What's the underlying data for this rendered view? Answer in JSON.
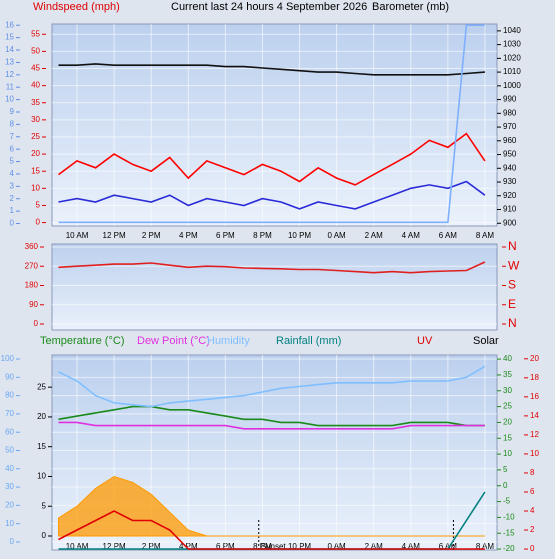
{
  "header": {
    "title": "Current last 24 hours 4 September 2026",
    "left_label": "Windspeed (mph)",
    "right_label": "Barometer (mb)"
  },
  "chart_data": [
    {
      "type": "line",
      "x": [
        9,
        10,
        11,
        12,
        13,
        14,
        15,
        16,
        17,
        18,
        19,
        20,
        21,
        22,
        23,
        24,
        25,
        26,
        27,
        28,
        29,
        30,
        31,
        32
      ],
      "xlim": [
        8.65,
        32.65
      ],
      "xticks": [
        {
          "value": 10,
          "label": "10 AM"
        },
        {
          "value": 12,
          "label": "12 PM"
        },
        {
          "value": 14,
          "label": "2 PM"
        },
        {
          "value": 16,
          "label": "4 PM"
        },
        {
          "value": 18,
          "label": "6 PM"
        },
        {
          "value": 20,
          "label": "8 PM"
        },
        {
          "value": 22,
          "label": "10 PM"
        },
        {
          "value": 24,
          "label": "0 AM"
        },
        {
          "value": 26,
          "label": "2 AM"
        },
        {
          "value": 28,
          "label": "4 AM"
        },
        {
          "value": 30,
          "label": "6 AM"
        },
        {
          "value": 32,
          "label": "8 AM"
        }
      ],
      "ylim": [
        -1,
        58
      ],
      "yticks": [
        0,
        5,
        10,
        15,
        20,
        25,
        30,
        35,
        40,
        45,
        50,
        55
      ],
      "y2lim": [
        898,
        1045
      ],
      "y2ticks": [
        900,
        910,
        920,
        930,
        940,
        950,
        960,
        970,
        980,
        990,
        1000,
        1010,
        1020,
        1030,
        1040
      ],
      "y3lim": [
        -0.2,
        16.1
      ],
      "y3ticks": [
        0,
        1,
        2,
        3,
        4,
        5,
        6,
        7,
        8,
        9,
        10,
        11,
        12,
        13,
        14,
        15,
        16
      ],
      "axis_colors": {
        "y": "#e00000",
        "y2": "#000000",
        "y3": "#5f8fe8"
      },
      "grid": true,
      "series": [
        {
          "color": "#ff0000",
          "values": [
            14,
            18,
            16,
            20,
            17,
            15,
            19,
            13,
            18,
            16,
            14,
            17,
            15,
            12,
            16,
            13,
            11,
            14,
            17,
            20,
            24,
            22,
            26,
            18
          ]
        },
        {
          "color": "#2a2ad8",
          "values": [
            6,
            7,
            6,
            8,
            7,
            6,
            8,
            5,
            7,
            6,
            5,
            7,
            6,
            4,
            6,
            5,
            4,
            6,
            8,
            10,
            11,
            10,
            12,
            8
          ]
        },
        {
          "color": "#111111",
          "axis": "y2",
          "values": [
            1015,
            1015,
            1016,
            1015,
            1015,
            1015,
            1015,
            1015,
            1015,
            1014,
            1014,
            1013,
            1012,
            1011,
            1010,
            1010,
            1009,
            1008,
            1008,
            1008,
            1008,
            1008,
            1009,
            1010
          ]
        },
        {
          "color": "#7fb0ff",
          "axis": "y3",
          "values": [
            0.1,
            0.1,
            0.1,
            0.1,
            0.1,
            0.1,
            0.1,
            0.1,
            0.1,
            0.1,
            0.1,
            0.1,
            0.1,
            0.1,
            0.1,
            0.1,
            0.1,
            0.1,
            0.1,
            0.1,
            0.1,
            0.1,
            16,
            16
          ]
        }
      ]
    },
    {
      "type": "line",
      "x": [
        9,
        10,
        11,
        12,
        13,
        14,
        15,
        16,
        17,
        18,
        19,
        20,
        21,
        22,
        23,
        24,
        25,
        26,
        27,
        28,
        29,
        30,
        31,
        32
      ],
      "xlim": [
        8.65,
        32.65
      ],
      "ylim": [
        -28,
        374
      ],
      "yticks": [
        0,
        90,
        180,
        270,
        360
      ],
      "y2lim": [
        -28,
        374
      ],
      "y2ticks": [
        {
          "value": 360,
          "label": "N"
        },
        {
          "value": 270,
          "label": "W"
        },
        {
          "value": 180,
          "label": "S"
        },
        {
          "value": 90,
          "label": "E"
        },
        {
          "value": 0,
          "label": "N"
        }
      ],
      "axis_colors": {
        "y": "#e00000",
        "y2": "#e00000"
      },
      "grid": true,
      "series": [
        {
          "color": "#e02020",
          "values": [
            265,
            270,
            275,
            280,
            280,
            285,
            275,
            265,
            270,
            268,
            262,
            260,
            258,
            255,
            255,
            250,
            245,
            240,
            245,
            240,
            245,
            248,
            250,
            290
          ]
        }
      ]
    },
    {
      "type": "line",
      "x": [
        9,
        10,
        11,
        12,
        13,
        14,
        15,
        16,
        17,
        18,
        19,
        20,
        21,
        22,
        23,
        24,
        25,
        26,
        27,
        28,
        29,
        30,
        31,
        32
      ],
      "xlim": [
        8.65,
        32.65
      ],
      "xticks": [
        {
          "value": 10,
          "label": "10 AM"
        },
        {
          "value": 12,
          "label": "12 PM"
        },
        {
          "value": 14,
          "label": "2 PM"
        },
        {
          "value": 16,
          "label": "4 PM"
        },
        {
          "value": 18,
          "label": "6 PM"
        },
        {
          "value": 20,
          "label": "8 PM"
        },
        {
          "value": 22,
          "label": "10 PM"
        },
        {
          "value": 24,
          "label": "0 AM"
        },
        {
          "value": 26,
          "label": "2 AM"
        },
        {
          "value": 28,
          "label": "4 AM"
        },
        {
          "value": 30,
          "label": "6 AM"
        },
        {
          "value": 32,
          "label": "8 AM"
        }
      ],
      "ylim": [
        -4.4,
        102.2
      ],
      "yticks": [
        0,
        10,
        20,
        30,
        40,
        50,
        60,
        70,
        80,
        90,
        100
      ],
      "y2lim": [
        -20.3,
        41.3
      ],
      "y2ticks": [
        -20,
        -15,
        -10,
        -5,
        0,
        5,
        10,
        15,
        20,
        25,
        30,
        35,
        40
      ],
      "y3lim": [
        -2.35,
        30.4
      ],
      "y3ticks": [
        0,
        5,
        10,
        15,
        20,
        25
      ],
      "y4lim": [
        -0.1,
        20.4
      ],
      "y4ticks": [
        0,
        2,
        4,
        6,
        8,
        10,
        12,
        14,
        16,
        18,
        20
      ],
      "axis_colors": {
        "y": "#6aa8f0",
        "y2": "#1a8a1a",
        "y3": "#000000",
        "y4": "#e00000"
      },
      "grid": true,
      "annotations": [
        {
          "x": 19.8,
          "label": "Sunset"
        },
        {
          "x": 30.3
        }
      ],
      "series": [
        {
          "name": "Temperature (°C)",
          "color": "#1a8a1a",
          "axis": "y2",
          "values": [
            21,
            22,
            23,
            24,
            25,
            25,
            24,
            24,
            23,
            22,
            21,
            21,
            20,
            20,
            19,
            19,
            19,
            19,
            19,
            20,
            20,
            20,
            19,
            19
          ]
        },
        {
          "name": "Dew Point (°C)",
          "color": "#e030e0",
          "axis": "y2",
          "values": [
            20,
            20,
            19,
            19,
            19,
            19,
            19,
            19,
            19,
            19,
            18,
            18,
            18,
            18,
            18,
            18,
            18,
            18,
            18,
            19,
            19,
            19,
            19,
            19
          ]
        },
        {
          "name": "Humidity",
          "color": "#80bfff",
          "values": [
            93,
            88,
            80,
            76,
            75,
            74,
            76,
            77,
            78,
            79,
            80,
            82,
            84,
            85,
            86,
            87,
            87,
            87,
            87,
            88,
            88,
            88,
            90,
            96
          ]
        },
        {
          "name": "Rainfall (mm)",
          "color": "#008080",
          "axis": "y4",
          "values": [
            0,
            0,
            0,
            0,
            0,
            0,
            0,
            0,
            0,
            0,
            0,
            0,
            0,
            0,
            0,
            0,
            0,
            0,
            0,
            0,
            0,
            0,
            3,
            6
          ]
        },
        {
          "name": "UV",
          "color": "#e00000",
          "axis": "y4",
          "values": [
            1,
            2,
            3,
            4,
            3,
            3,
            2,
            0,
            0,
            0,
            0,
            0,
            0,
            0,
            0,
            0,
            0,
            0,
            0,
            0,
            0,
            0,
            0,
            0
          ]
        },
        {
          "name": "Solar",
          "color": "#ff9a00",
          "text_color": "#000000",
          "axis": "y3",
          "area": true,
          "values": [
            3,
            5,
            8,
            10,
            9,
            7,
            4,
            1,
            0,
            0,
            0,
            0,
            0,
            0,
            0,
            0,
            0,
            0,
            0,
            0,
            0,
            0,
            0,
            0
          ]
        }
      ]
    }
  ]
}
